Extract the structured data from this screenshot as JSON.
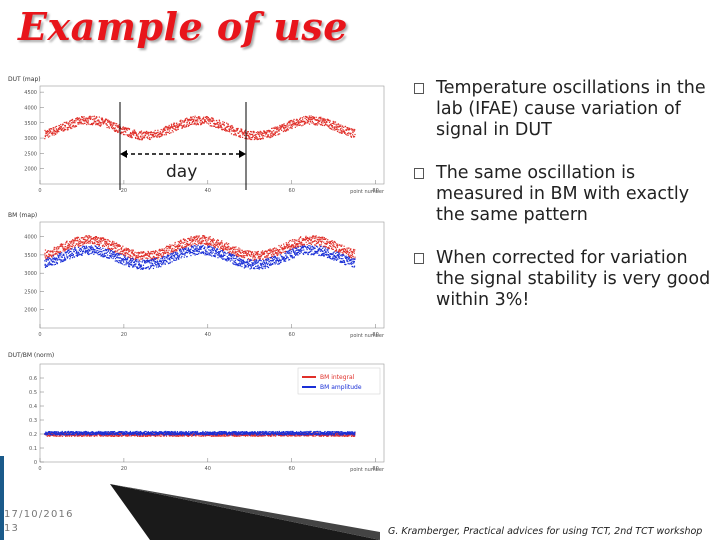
{
  "title": "Example of use",
  "bullets": [
    {
      "text": "Temperature oscillations in the lab (IFAE) cause variation of signal in DUT"
    },
    {
      "text": "The same oscillation is measured in BM with exactly the same pattern"
    },
    {
      "text": "When corrected for variation the signal stability is very good within 3%!"
    }
  ],
  "day_label": "day",
  "footer": {
    "date": "17/10/2016",
    "page": "13",
    "citation": "G. Kramberger, Practical advices for using TCT, 2nd TCT workshop"
  },
  "colors": {
    "title": "#e8151b",
    "red_series": "#e0302a",
    "blue_series": "#1a2fd6"
  },
  "chart_data": [
    {
      "type": "scatter",
      "title": "DUT (map)",
      "xlabel": "point number",
      "x_ticks": [
        0,
        20,
        40,
        60,
        80
      ],
      "y_ticks": [
        2000,
        2500,
        3000,
        3500,
        4000,
        4500
      ],
      "ylim": [
        1500,
        4700
      ],
      "series": [
        {
          "color": "#e0302a",
          "mean": 3350,
          "amplitude": 250,
          "periods": 2.8
        }
      ]
    },
    {
      "type": "scatter",
      "title": "BM (map)",
      "xlabel": "point number",
      "x_ticks": [
        0,
        20,
        40,
        60,
        80
      ],
      "y_ticks": [
        2000,
        2500,
        3000,
        3500,
        4000
      ],
      "ylim": [
        1500,
        4400
      ],
      "series": [
        {
          "color": "#e0302a",
          "mean": 3700,
          "amplitude": 220,
          "periods": 2.8
        },
        {
          "color": "#1a2fd6",
          "mean": 3450,
          "amplitude": 200,
          "periods": 2.8
        }
      ]
    },
    {
      "type": "scatter",
      "title": "DUT/BM (norm)",
      "xlabel": "point number",
      "x_ticks": [
        0,
        20,
        40,
        60,
        80
      ],
      "y_ticks": [
        0,
        0.1,
        0.2,
        0.3,
        0.4,
        0.5,
        0.6
      ],
      "ylim": [
        0,
        0.7
      ],
      "legend": {
        "entries": [
          "BM integral",
          "BM amplitude"
        ],
        "placement": "top-right"
      },
      "series": [
        {
          "name": "BM integral",
          "color": "#e0302a",
          "mean": 0.2,
          "amplitude": 0
        },
        {
          "name": "BM amplitude",
          "color": "#1a2fd6",
          "mean": 0.21,
          "amplitude": 0
        }
      ]
    }
  ]
}
